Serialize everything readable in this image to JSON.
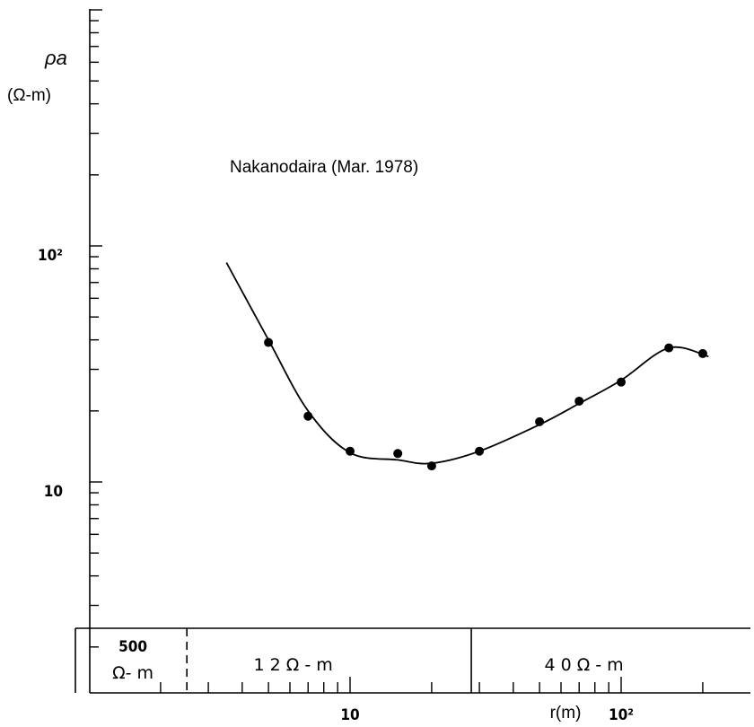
{
  "chart_data": {
    "type": "scatter",
    "title": "Nakanodaira (Mar. 1978)",
    "ylabel_symbol": "ρa",
    "ylabel_unit": "(Ω-m)",
    "xlabel": "r(m)",
    "x_scale": "log",
    "y_scale": "log",
    "xlim": [
      1,
      1000
    ],
    "ylim": [
      2,
      1000
    ],
    "x_ticks": [
      {
        "value": 10,
        "label": "10"
      },
      {
        "value": 100,
        "label": "10²"
      }
    ],
    "y_ticks": [
      {
        "value": 10,
        "label": "10"
      },
      {
        "value": 100,
        "label": "10²"
      }
    ],
    "series": [
      {
        "points": [
          {
            "x": 5,
            "y": 39
          },
          {
            "x": 7,
            "y": 19
          },
          {
            "x": 10,
            "y": 13.5
          },
          {
            "x": 15,
            "y": 13.2
          },
          {
            "x": 20,
            "y": 11.7
          },
          {
            "x": 30,
            "y": 13.5
          },
          {
            "x": 50,
            "y": 18
          },
          {
            "x": 70,
            "y": 22
          },
          {
            "x": 100,
            "y": 26.5
          },
          {
            "x": 150,
            "y": 37
          },
          {
            "x": 200,
            "y": 35
          }
        ],
        "curve": [
          [
            3.5,
            85
          ],
          [
            5,
            40
          ],
          [
            7,
            20
          ],
          [
            10,
            13.3
          ],
          [
            15,
            12.4
          ],
          [
            20,
            12
          ],
          [
            30,
            13.5
          ],
          [
            50,
            17.5
          ],
          [
            70,
            21.5
          ],
          [
            100,
            27
          ],
          [
            150,
            37
          ],
          [
            210,
            34
          ]
        ]
      }
    ],
    "layers": [
      {
        "resistivity": "500",
        "unit": "Ω- m",
        "x_from": 1,
        "x_to": 2.5,
        "boundary": "dashed"
      },
      {
        "label": "1 2   Ω - m",
        "x_from": 2.5,
        "x_to": 28,
        "boundary": "solid"
      },
      {
        "label": "4 0   Ω  - m",
        "x_from": 28,
        "x_to": 300
      }
    ]
  }
}
